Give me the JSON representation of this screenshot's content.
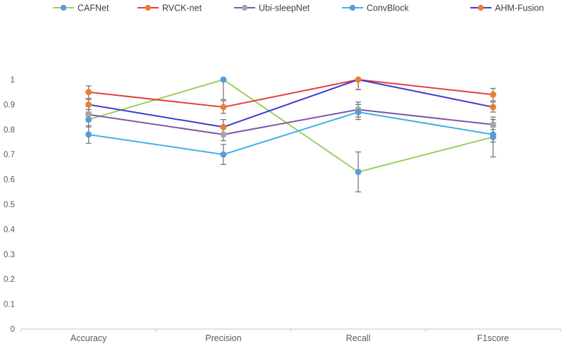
{
  "chart_data": {
    "type": "line",
    "title": "",
    "categories": [
      "Accuracy",
      "Precision",
      "Recall",
      "F1score"
    ],
    "y_tick_labels": [
      "0",
      "0.1",
      "0.2",
      "0.3",
      "0.4",
      "0.5",
      "0.6",
      "0.7",
      "0.8",
      "0.9",
      "1"
    ],
    "ylim": [
      0,
      1
    ],
    "grid": false,
    "legend_position": "top",
    "series": [
      {
        "name": "CAFNet",
        "line_color": "#9CCE5F",
        "marker_color": "#5B9BD5",
        "values": [
          0.84,
          1.0,
          0.63,
          0.77
        ],
        "errors": [
          0.03,
          0.08,
          0.08,
          0.08
        ]
      },
      {
        "name": "RVCK-net",
        "line_color": "#E2403C",
        "marker_color": "#ED7D31",
        "values": [
          0.95,
          0.89,
          1.0,
          0.94
        ],
        "errors": [
          0.025,
          0.025,
          0.04,
          0.025
        ]
      },
      {
        "name": "Ubi-sleepNet",
        "line_color": "#7E57A9",
        "marker_color": "#A5A5A5",
        "values": [
          0.86,
          0.78,
          0.88,
          0.82
        ],
        "errors": [
          0.02,
          0.025,
          0.03,
          0.02
        ]
      },
      {
        "name": "ConvBlock",
        "line_color": "#3FB1E3",
        "marker_color": "#5B9BD5",
        "values": [
          0.78,
          0.7,
          0.87,
          0.78
        ],
        "errors": [
          0.035,
          0.04,
          0.03,
          0.03
        ]
      },
      {
        "name": "AHM-Fusion",
        "line_color": "#3B3BD0",
        "marker_color": "#ED7D31",
        "values": [
          0.9,
          0.81,
          1.0,
          0.89
        ],
        "errors": [
          0.02,
          0.03,
          0.04,
          0.02
        ]
      }
    ],
    "colors": {
      "error_bar": "#6F6F6F",
      "axis_line": "#C6C6C6",
      "axis_text": "#595959",
      "legend_text": "#3F3F3F",
      "background": "#FFFFFF"
    }
  }
}
